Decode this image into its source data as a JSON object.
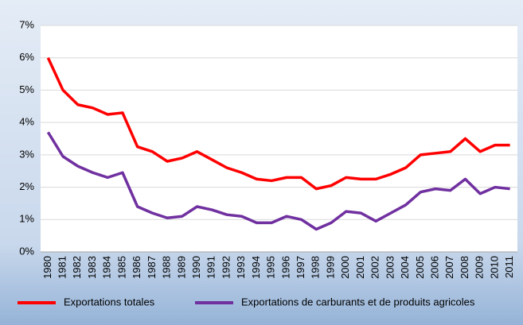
{
  "chart_data": {
    "type": "line",
    "categories": [
      "1980",
      "1981",
      "1982",
      "1983",
      "1984",
      "1985",
      "1986",
      "1987",
      "1988",
      "1989",
      "1990",
      "1991",
      "1992",
      "1993",
      "1994",
      "1995",
      "1996",
      "1997",
      "1998",
      "1999",
      "2000",
      "2001",
      "2002",
      "2003",
      "2004",
      "2005",
      "2006",
      "2007",
      "2008",
      "2009",
      "2010",
      "2011"
    ],
    "series": [
      {
        "name": "Exportations totales",
        "color": "#ff0000",
        "values": [
          6.0,
          5.0,
          4.55,
          4.45,
          4.25,
          4.3,
          3.25,
          3.1,
          2.8,
          2.9,
          3.1,
          2.85,
          2.6,
          2.45,
          2.25,
          2.2,
          2.3,
          2.3,
          1.95,
          2.05,
          2.3,
          2.25,
          2.25,
          2.4,
          2.6,
          3.0,
          3.05,
          3.1,
          3.5,
          3.1,
          3.3,
          3.3
        ]
      },
      {
        "name": "Exportations de  carburants et de produits agricoles",
        "color": "#7030a0",
        "values": [
          3.7,
          2.95,
          2.65,
          2.45,
          2.3,
          2.45,
          1.4,
          1.2,
          1.05,
          1.1,
          1.4,
          1.3,
          1.15,
          1.1,
          0.9,
          0.9,
          1.1,
          1.0,
          0.7,
          0.9,
          1.25,
          1.2,
          0.95,
          1.2,
          1.45,
          1.85,
          1.95,
          1.9,
          2.25,
          1.8,
          2.0,
          1.95
        ]
      }
    ],
    "ylim": [
      0,
      7
    ],
    "yticks": [
      {
        "value": 0,
        "label": "0%"
      },
      {
        "value": 1,
        "label": "1%"
      },
      {
        "value": 2,
        "label": "2%"
      },
      {
        "value": 3,
        "label": "3%"
      },
      {
        "value": 4,
        "label": "4%"
      },
      {
        "value": 5,
        "label": "5%"
      },
      {
        "value": 6,
        "label": "6%"
      },
      {
        "value": 7,
        "label": "7%"
      }
    ],
    "grid": true,
    "legend": "bottom"
  }
}
